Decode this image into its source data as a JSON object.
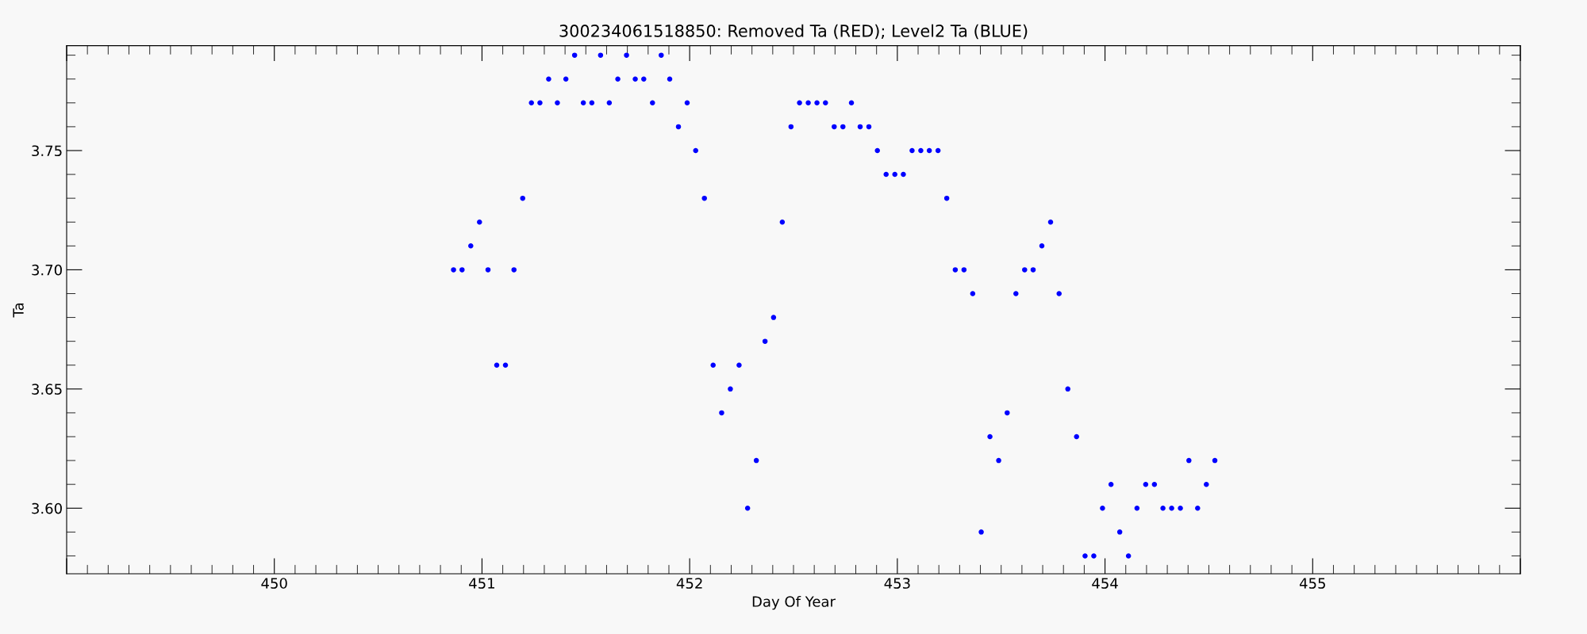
{
  "chart_data": {
    "type": "scatter",
    "title": "300234061518850: Removed Ta (RED); Level2 Ta (BLUE)",
    "xlabel": "Day Of Year",
    "ylabel": "Ta",
    "xlim": [
      449,
      456
    ],
    "xticks": [
      {
        "value": 449,
        "label": null
      },
      450,
      451,
      452,
      453,
      454,
      455,
      {
        "value": 456,
        "label": null
      }
    ],
    "ylim": [
      3.5725,
      3.794
    ],
    "yticks": [
      {
        "value": 3.6,
        "label": "3.60"
      },
      {
        "value": 3.65,
        "label": "3.65"
      },
      {
        "value": 3.7,
        "label": "3.70"
      },
      {
        "value": 3.75,
        "label": "3.75"
      }
    ],
    "grid": false,
    "legend": false,
    "marker": "circle",
    "series": [
      {
        "color": "#0000ff",
        "x": [
          450.863,
          450.904,
          450.946,
          450.988,
          451.029,
          451.071,
          451.113,
          451.154,
          451.196,
          451.238,
          451.279,
          451.321,
          451.363,
          451.404,
          451.446,
          451.488,
          451.529,
          451.571,
          451.613,
          451.654,
          451.696,
          451.738,
          451.779,
          451.821,
          451.863,
          451.904,
          451.946,
          451.988,
          452.029,
          452.071,
          452.113,
          452.154,
          452.196,
          452.238,
          452.279,
          452.321,
          452.363,
          452.404,
          452.446,
          452.488,
          452.529,
          452.571,
          452.613,
          452.654,
          452.696,
          452.738,
          452.779,
          452.821,
          452.863,
          452.904,
          452.946,
          452.988,
          453.029,
          453.071,
          453.113,
          453.154,
          453.196,
          453.238,
          453.279,
          453.321,
          453.363,
          453.404,
          453.446,
          453.488,
          453.529,
          453.571,
          453.613,
          453.654,
          453.696,
          453.738,
          453.779,
          453.821,
          453.863,
          453.904,
          453.946,
          453.988,
          454.029,
          454.071,
          454.113,
          454.154,
          454.196,
          454.238,
          454.279,
          454.321,
          454.363,
          454.404,
          454.446,
          454.488,
          454.529
        ],
        "values": [
          3.7,
          3.7,
          3.71,
          3.72,
          3.7,
          3.66,
          3.66,
          3.7,
          3.73,
          3.77,
          3.77,
          3.78,
          3.77,
          3.78,
          3.79,
          3.77,
          3.77,
          3.79,
          3.77,
          3.78,
          3.79,
          3.78,
          3.78,
          3.77,
          3.79,
          3.78,
          3.76,
          3.77,
          3.75,
          3.73,
          3.66,
          3.64,
          3.65,
          3.66,
          3.6,
          3.62,
          3.67,
          3.68,
          3.72,
          3.76,
          3.77,
          3.77,
          3.77,
          3.77,
          3.76,
          3.76,
          3.77,
          3.76,
          3.76,
          3.75,
          3.74,
          3.74,
          3.74,
          3.75,
          3.75,
          3.75,
          3.75,
          3.73,
          3.7,
          3.7,
          3.69,
          3.59,
          3.63,
          3.62,
          3.64,
          3.69,
          3.7,
          3.7,
          3.71,
          3.72,
          3.69,
          3.65,
          3.63,
          3.58,
          3.58,
          3.6,
          3.61,
          3.59,
          3.58,
          3.6,
          3.61,
          3.61,
          3.6,
          3.6,
          3.6,
          3.62,
          3.6,
          3.61,
          3.62
        ]
      }
    ]
  }
}
